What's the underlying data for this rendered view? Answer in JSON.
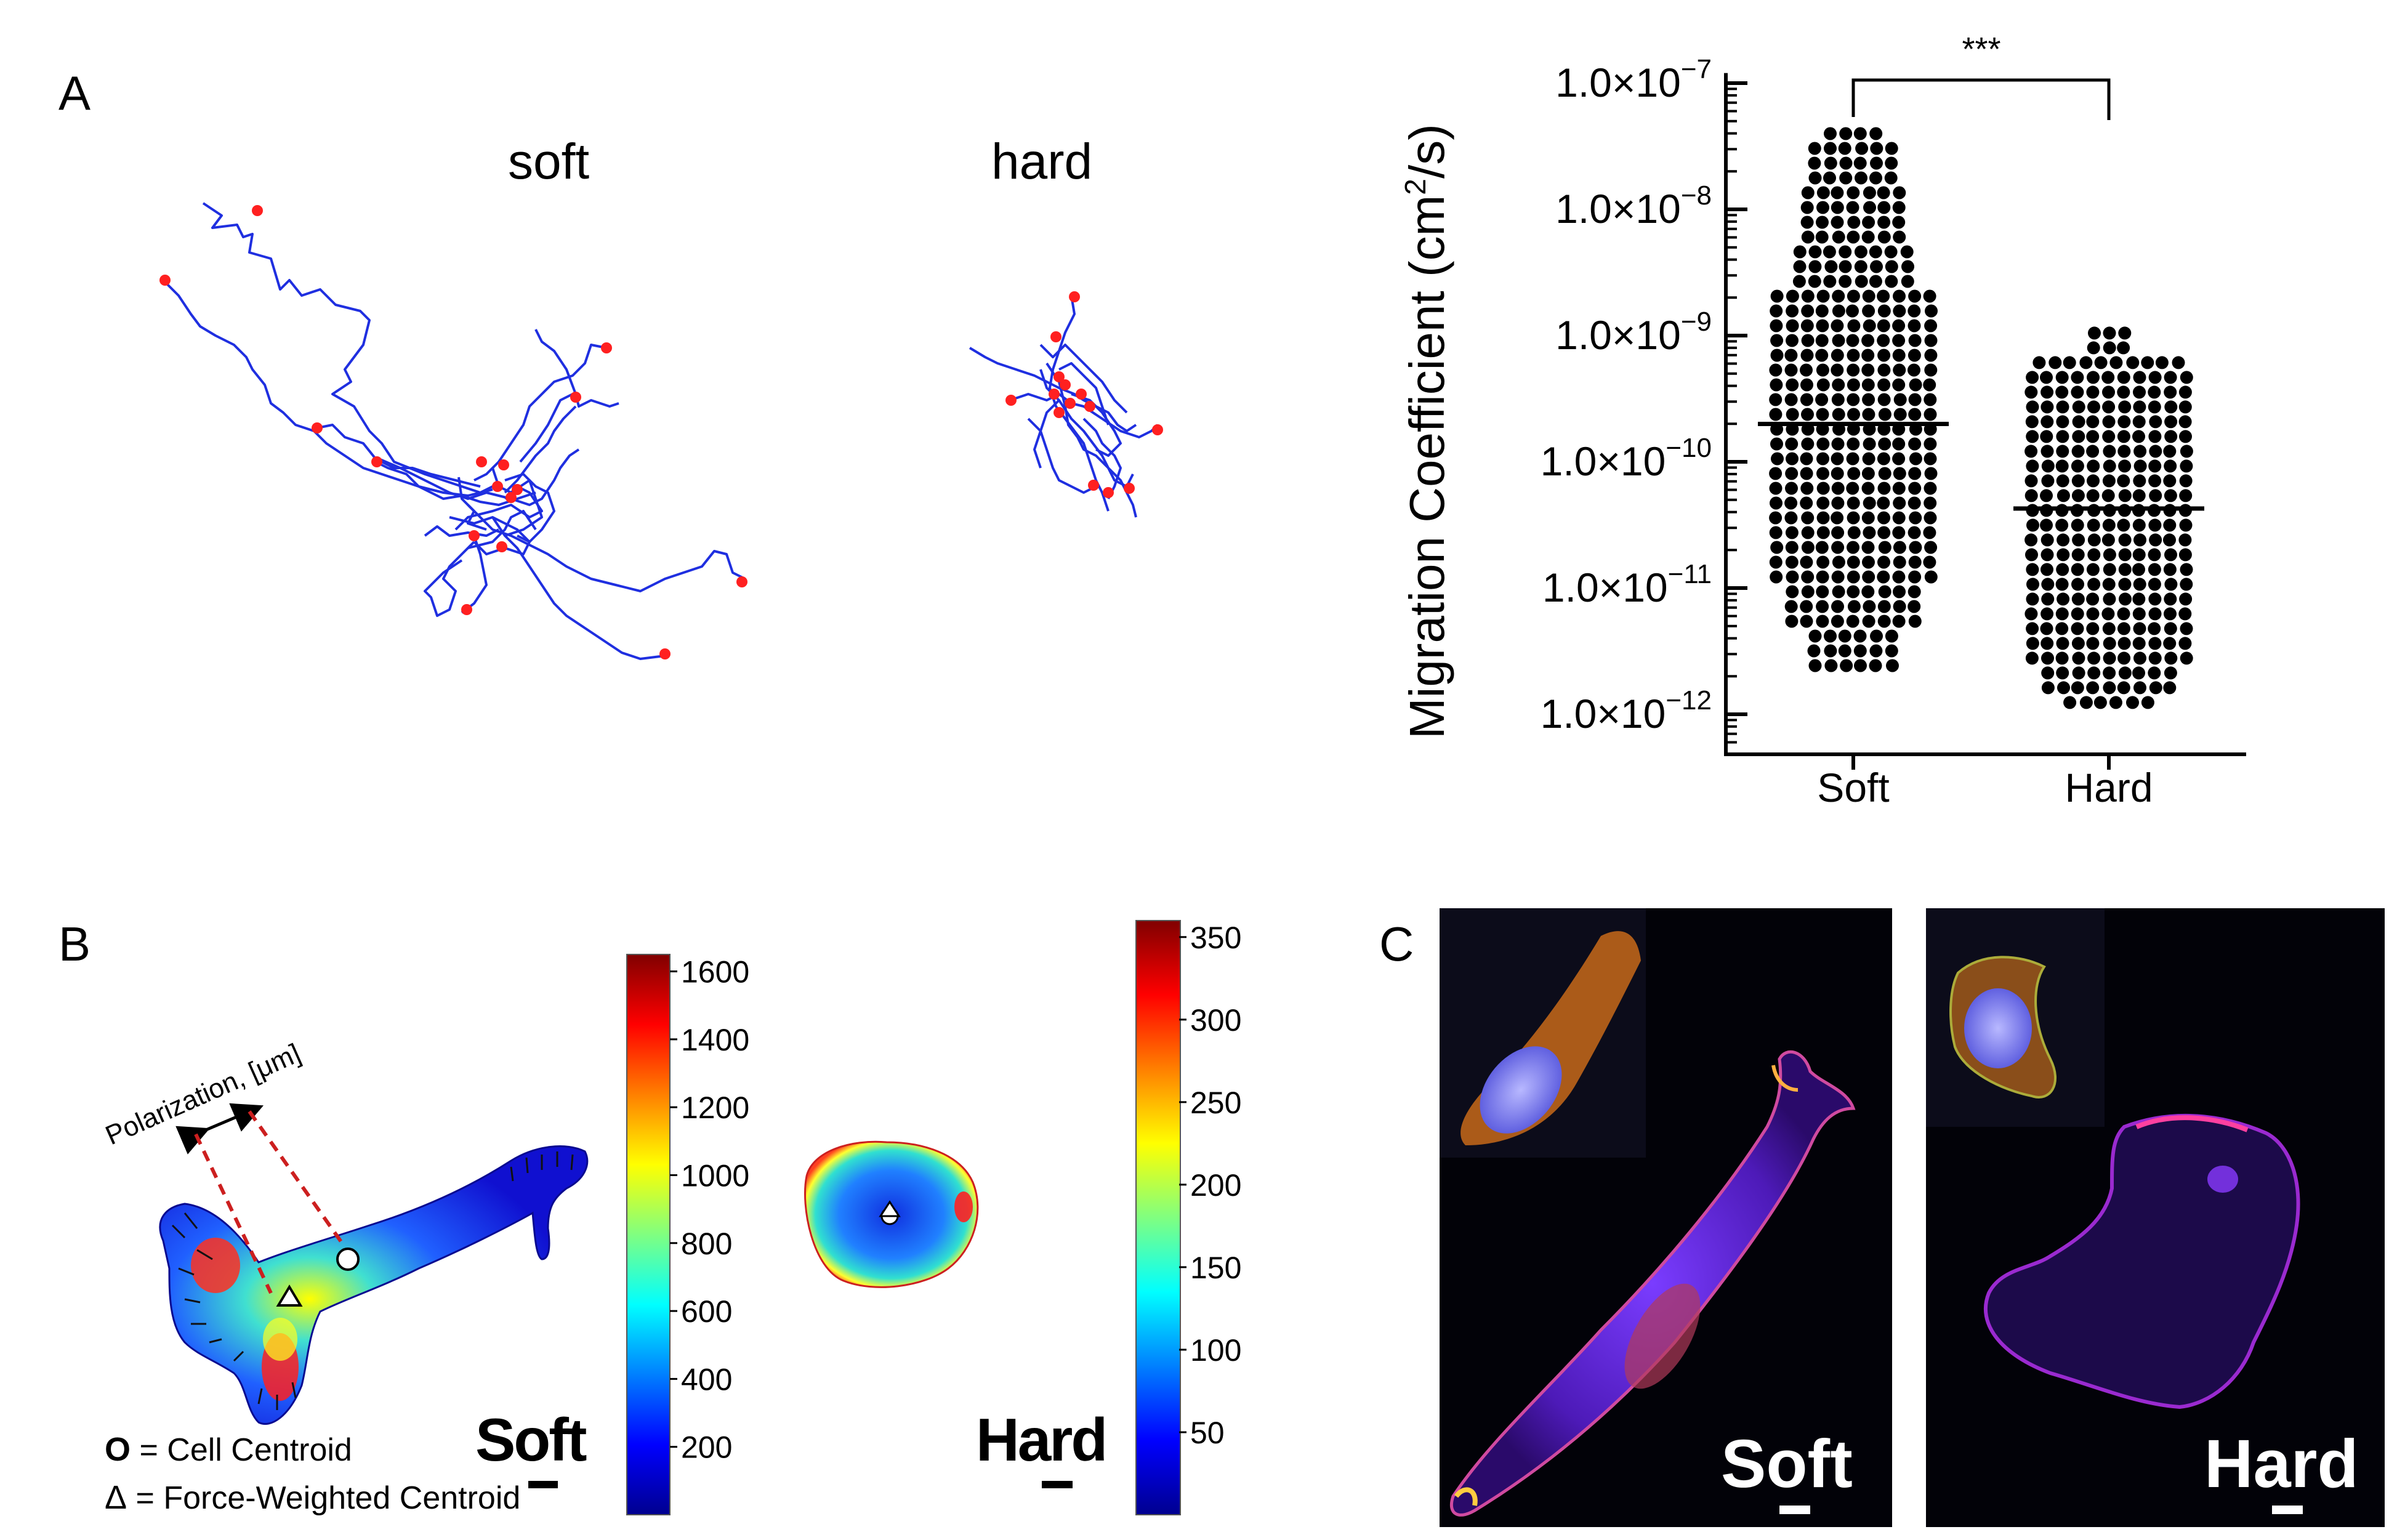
{
  "panels": {
    "a": {
      "letter": "A",
      "soft_label": "soft",
      "hard_label": "hard"
    },
    "b": {
      "letter": "B",
      "polarization_label": "Polarization, [μm]",
      "soft_label": "Soft",
      "hard_label": "Hard",
      "legend_circle_symbol": "O",
      "legend_circle_text": " = Cell Centroid",
      "legend_triangle_symbol": "Δ",
      "legend_triangle_text": " = Force-Weighted Centroid",
      "colorbar_soft": {
        "ticks": [
          "1600",
          "1400",
          "1200",
          "1000",
          "800",
          "600",
          "400",
          "200"
        ],
        "range": [
          0,
          1650
        ]
      },
      "colorbar_hard": {
        "ticks": [
          "350",
          "300",
          "250",
          "200",
          "150",
          "100",
          "50"
        ],
        "range": [
          0,
          360
        ]
      }
    },
    "c": {
      "letter": "C",
      "soft_label": "Soft",
      "hard_label": "Hard"
    }
  },
  "chart_data": {
    "type": "scatter",
    "subtype": "dot-plot-log-scale",
    "ylabel_main": "Migration Coefficient (cm",
    "ylabel_sup": "2",
    "ylabel_end": "/s)",
    "yscale": "log",
    "ylim_exponent": [
      -12.4,
      -6.9
    ],
    "yticks": [
      {
        "exp": -7,
        "mantissa": "1.0×10",
        "sup": "−7"
      },
      {
        "exp": -8,
        "mantissa": "1.0×10",
        "sup": "−8"
      },
      {
        "exp": -9,
        "mantissa": "1.0×10",
        "sup": "−9"
      },
      {
        "exp": -10,
        "mantissa": "1.0×10",
        "sup": "−10"
      },
      {
        "exp": -11,
        "mantissa": "1.0×10",
        "sup": "−11"
      },
      {
        "exp": -12,
        "mantissa": "1.0×10",
        "sup": "−12"
      }
    ],
    "categories": [
      "Soft",
      "Hard"
    ],
    "series": [
      {
        "name": "Soft",
        "median_exp": -9.7,
        "min_exp": -11.65,
        "max_exp": -7.4
      },
      {
        "name": "Hard",
        "median_exp": -10.37,
        "min_exp": -11.95,
        "max_exp": -8.98
      }
    ],
    "significance": "***"
  },
  "colors": {
    "track": "#1f2fe0",
    "endpoint": "#ff2020",
    "dots": "#000000",
    "polarization": "#cc1f1f"
  }
}
